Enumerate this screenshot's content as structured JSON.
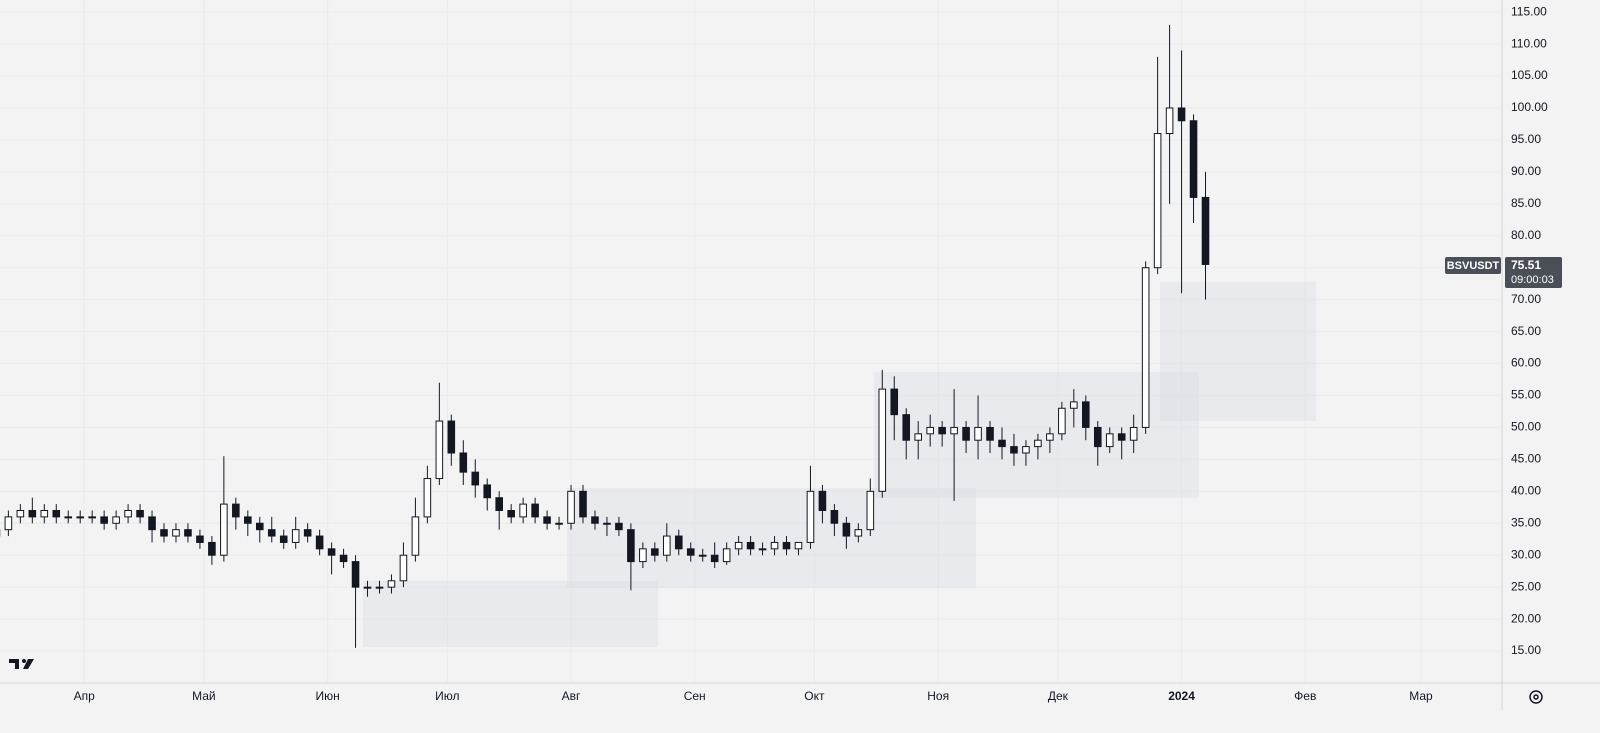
{
  "chart_data": {
    "type": "candlestick",
    "symbol": "BSVUSDT",
    "countdown": "09:00:03",
    "up_color": "#ffffff",
    "down_color": "#131722",
    "outline_color": "#131722",
    "grid": true,
    "xlim": [
      0.3,
      125.6
    ],
    "ylim": [
      10,
      116.9
    ],
    "xticks": [
      {
        "value": 7.33,
        "label": "Апр"
      },
      {
        "value": 17.33,
        "label": "Май"
      },
      {
        "value": 27.67,
        "label": "Июн"
      },
      {
        "value": 37.67,
        "label": "Июл"
      },
      {
        "value": 48,
        "label": "Авг"
      },
      {
        "value": 58.33,
        "label": "Сен"
      },
      {
        "value": 68.33,
        "label": "Окт"
      },
      {
        "value": 78.67,
        "label": "Ноя"
      },
      {
        "value": 88.67,
        "label": "Дек"
      },
      {
        "value": 99,
        "label": "2024"
      },
      {
        "value": 109.33,
        "label": "Фев"
      },
      {
        "value": 119,
        "label": "Мар"
      }
    ],
    "yticks": [
      {
        "value": 15,
        "label": "15.00"
      },
      {
        "value": 20,
        "label": "20.00"
      },
      {
        "value": 25,
        "label": "25.00"
      },
      {
        "value": 30,
        "label": "30.00"
      },
      {
        "value": 35,
        "label": "35.00"
      },
      {
        "value": 40,
        "label": "40.00"
      },
      {
        "value": 45,
        "label": "45.00"
      },
      {
        "value": 50,
        "label": "50.00"
      },
      {
        "value": 55,
        "label": "55.00"
      },
      {
        "value": 60,
        "label": "60.00"
      },
      {
        "value": 65,
        "label": "65.00"
      },
      {
        "value": 70,
        "label": "70.00"
      },
      {
        "value": 75,
        "label": "75.00"
      },
      {
        "value": 80,
        "label": "80.00"
      },
      {
        "value": 85,
        "label": "85.00"
      },
      {
        "value": 90,
        "label": "90.00"
      },
      {
        "value": 95,
        "label": "95.00"
      },
      {
        "value": 100,
        "label": "100.00"
      },
      {
        "value": 105,
        "label": "105.00"
      },
      {
        "value": 110,
        "label": "110.00"
      },
      {
        "value": 115,
        "label": "115.00"
      }
    ],
    "ohlc": [
      [
        33,
        35,
        31,
        34
      ],
      [
        34,
        37,
        33,
        36
      ],
      [
        36,
        38,
        35,
        37
      ],
      [
        37,
        39,
        35,
        36
      ],
      [
        36,
        38,
        35,
        37
      ],
      [
        37,
        38,
        35,
        36
      ],
      [
        36,
        37,
        35,
        36
      ],
      [
        36,
        37,
        35,
        36
      ],
      [
        36,
        37,
        35,
        36
      ],
      [
        36,
        37,
        34,
        35
      ],
      [
        35,
        37,
        34,
        36
      ],
      [
        36,
        38,
        35,
        37
      ],
      [
        37,
        38,
        35,
        36
      ],
      [
        36,
        37,
        32,
        34
      ],
      [
        34,
        35,
        32,
        33
      ],
      [
        33,
        35,
        32,
        34
      ],
      [
        34,
        35,
        32,
        33
      ],
      [
        33,
        34,
        31,
        32
      ],
      [
        32,
        33,
        28.5,
        30
      ],
      [
        30,
        45.5,
        29,
        38
      ],
      [
        38,
        39,
        34,
        36
      ],
      [
        36,
        37,
        33,
        35
      ],
      [
        35,
        36,
        32,
        34
      ],
      [
        34,
        36,
        32,
        33
      ],
      [
        33,
        34,
        31,
        32
      ],
      [
        32,
        36,
        31,
        34
      ],
      [
        34,
        35,
        32,
        33
      ],
      [
        33,
        34,
        30,
        31
      ],
      [
        31,
        32,
        27,
        30
      ],
      [
        30,
        31,
        28,
        29
      ],
      [
        29,
        30,
        15.5,
        25
      ],
      [
        25,
        26,
        23.5,
        25
      ],
      [
        25,
        26,
        24,
        25
      ],
      [
        25,
        27,
        24,
        26
      ],
      [
        26,
        32,
        25,
        30
      ],
      [
        30,
        39,
        29,
        36
      ],
      [
        36,
        44,
        35,
        42
      ],
      [
        42,
        57,
        41,
        51
      ],
      [
        51,
        52,
        44,
        46
      ],
      [
        46,
        48,
        41,
        43
      ],
      [
        43,
        45,
        39,
        41
      ],
      [
        41,
        42,
        37,
        39
      ],
      [
        39,
        40,
        34,
        37
      ],
      [
        37,
        38,
        35,
        36
      ],
      [
        36,
        39,
        35,
        38
      ],
      [
        38,
        39,
        35,
        36
      ],
      [
        36,
        37,
        34,
        35
      ],
      [
        35,
        36,
        34,
        35
      ],
      [
        35,
        41,
        34,
        40
      ],
      [
        40,
        41,
        35,
        36
      ],
      [
        36,
        37,
        34,
        35
      ],
      [
        35,
        36,
        33,
        35
      ],
      [
        35,
        36,
        33,
        34
      ],
      [
        34,
        35,
        24.5,
        29
      ],
      [
        29,
        32,
        28,
        31
      ],
      [
        31,
        32,
        29,
        30
      ],
      [
        30,
        35,
        29,
        33
      ],
      [
        33,
        34,
        30,
        31
      ],
      [
        31,
        32,
        29,
        30
      ],
      [
        30,
        31,
        29,
        30
      ],
      [
        30,
        32,
        28,
        29
      ],
      [
        29,
        32,
        28.5,
        31
      ],
      [
        31,
        33,
        30,
        32
      ],
      [
        32,
        33,
        30,
        31
      ],
      [
        31,
        32,
        30,
        31
      ],
      [
        31,
        33,
        30,
        32
      ],
      [
        32,
        33,
        30,
        31
      ],
      [
        31,
        32,
        30,
        32
      ],
      [
        32,
        44,
        31,
        40
      ],
      [
        40,
        41,
        35,
        37
      ],
      [
        37,
        38,
        33,
        35
      ],
      [
        35,
        36,
        31,
        33
      ],
      [
        33,
        35,
        32,
        34
      ],
      [
        34,
        42,
        33,
        40
      ],
      [
        40,
        59,
        39,
        56
      ],
      [
        56,
        58,
        48,
        52
      ],
      [
        52,
        53,
        45,
        48
      ],
      [
        48,
        51,
        45,
        49
      ],
      [
        49,
        52,
        47,
        50
      ],
      [
        50,
        51,
        47,
        49
      ],
      [
        49,
        56,
        38.5,
        50
      ],
      [
        50,
        51,
        46,
        48
      ],
      [
        48,
        55,
        45,
        50
      ],
      [
        50,
        51,
        46,
        48
      ],
      [
        48,
        50,
        45,
        47
      ],
      [
        47,
        49,
        44,
        46
      ],
      [
        46,
        48,
        44,
        47
      ],
      [
        47,
        49,
        45,
        48
      ],
      [
        48,
        50,
        46,
        49
      ],
      [
        49,
        54,
        48,
        53
      ],
      [
        53,
        56,
        50,
        54
      ],
      [
        54,
        55,
        48,
        50
      ],
      [
        50,
        51,
        44,
        47
      ],
      [
        47,
        50,
        46,
        49
      ],
      [
        49,
        50,
        45,
        48
      ],
      [
        48,
        52,
        46,
        50
      ],
      [
        50,
        76,
        49,
        75
      ],
      [
        75,
        108,
        74,
        96
      ],
      [
        96,
        113,
        85,
        100
      ],
      [
        100,
        109,
        71,
        98
      ],
      [
        98,
        99,
        82,
        86
      ],
      [
        86,
        90,
        70,
        75.51
      ]
    ]
  }
}
